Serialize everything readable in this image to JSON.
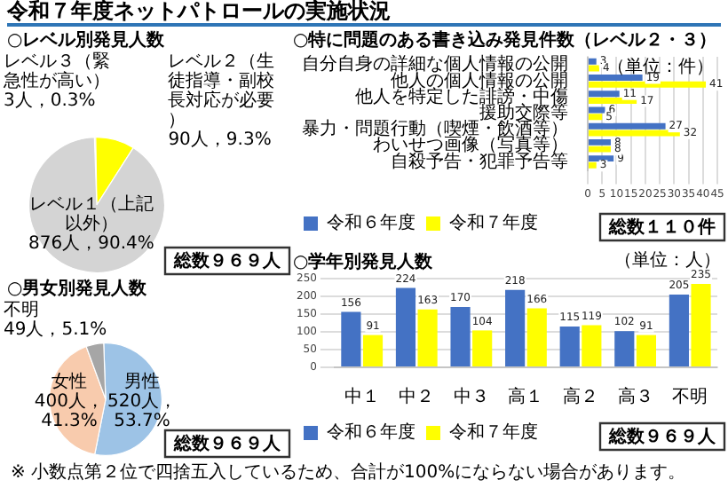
{
  "chart_data": [
    {
      "type": "pie",
      "title": "令和７年度ネットパトロールの実施状況",
      "subtitle": "○レベル別発見人数",
      "categories": [
        "レベル３（緊急性が高い）",
        "レベル２（生徒指導・副校長対応が必要）",
        "レベル１（上記以外）"
      ],
      "values": [
        3,
        90,
        876
      ],
      "value_labels": [
        "3人，0.3%",
        "90人，9.3%",
        "876人，90.4%"
      ],
      "colors": [
        "#ff4040",
        "#ffff00",
        "#d4d4d4"
      ],
      "annotations": [
        "総数９６９人"
      ]
    },
    {
      "type": "bar",
      "orientation": "horizontal",
      "title": "○特に問題のある書き込み発見件数（レベル２・３）",
      "categories": [
        "自分自身の詳細な個人情報の公開",
        "他人の個人情報の公開",
        "他人を特定した誹謗・中傷",
        "援助交際等",
        "暴力・問題行動（喫煙・飲酒等）",
        "わいせつ画像（写真等）",
        "自殺予告・犯罪予告等"
      ],
      "series": [
        {
          "name": "令和６年度",
          "color": "#4472c4",
          "values": [
            3,
            19,
            11,
            6,
            27,
            8,
            9
          ]
        },
        {
          "name": "令和７年度",
          "color": "#ffff00",
          "values": [
            4,
            41,
            17,
            5,
            32,
            8,
            3
          ]
        }
      ],
      "xlim": [
        0,
        45
      ],
      "xticks": [
        0,
        5,
        10,
        15,
        20,
        25,
        30,
        35,
        40,
        45
      ],
      "grid": "x",
      "legend": "bottom",
      "data_labels": true,
      "annotations": [
        "（単位：件）",
        "総数１１０件"
      ]
    },
    {
      "type": "pie",
      "title": "○男女別発見人数",
      "categories": [
        "男性",
        "女性",
        "不明"
      ],
      "values": [
        520,
        400,
        49
      ],
      "value_labels": [
        "520人，53.7%",
        "400人，41.3%",
        "49人，5.1%"
      ],
      "colors": [
        "#9dc3e6",
        "#f8cbad",
        "#a6a6a6"
      ],
      "annotations": [
        "総数９６９人",
        "※ 小数点第２位で四捨五入しているため、合計が100%にならない場合があります。"
      ]
    },
    {
      "type": "bar",
      "title": "○学年別発見人数",
      "categories": [
        "中１",
        "中２",
        "中３",
        "高１",
        "高２",
        "高３",
        "不明"
      ],
      "series": [
        {
          "name": "令和６年度",
          "color": "#4472c4",
          "values": [
            156,
            224,
            170,
            218,
            115,
            102,
            205
          ]
        },
        {
          "name": "令和７年度",
          "color": "#ffff00",
          "values": [
            91,
            163,
            104,
            166,
            119,
            91,
            235
          ]
        }
      ],
      "ylim": [
        0,
        250
      ],
      "yticks": [
        0,
        50,
        100,
        150,
        200,
        250
      ],
      "grid": "y",
      "legend": "bottom",
      "data_labels": true,
      "annotations": [
        "（単位：人）",
        "総数９６９人"
      ]
    }
  ]
}
